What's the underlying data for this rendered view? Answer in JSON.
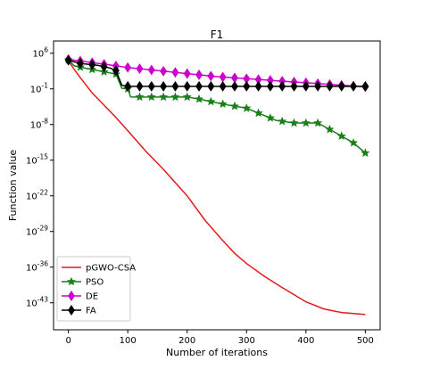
{
  "chart_data": {
    "type": "line",
    "title": "F1",
    "xlabel": "Number of iterations",
    "ylabel": "Function value",
    "xlim": [
      -25,
      525
    ],
    "ylog_exp_lim": [
      -48.3,
      8.4
    ],
    "yscale": "log",
    "xticks": [
      0,
      100,
      200,
      300,
      400,
      500
    ],
    "yticks": [
      {
        "exp": 6,
        "label": "10",
        "sup": "6"
      },
      {
        "exp": -1,
        "label": "10",
        "sup": "-1"
      },
      {
        "exp": -8,
        "label": "10",
        "sup": "-8"
      },
      {
        "exp": -15,
        "label": "10",
        "sup": "-15"
      },
      {
        "exp": -22,
        "label": "10",
        "sup": "-22"
      },
      {
        "exp": -29,
        "label": "10",
        "sup": "-29"
      },
      {
        "exp": -36,
        "label": "10",
        "sup": "-36"
      },
      {
        "exp": -43,
        "label": "10",
        "sup": "-43"
      }
    ],
    "legend_position": "lower-left",
    "series": [
      {
        "name": "pGWO-CSA",
        "color": "#e41a1c",
        "marker": "none",
        "x": [
          0,
          10,
          20,
          40,
          60,
          80,
          100,
          130,
          160,
          200,
          230,
          260,
          280,
          300,
          330,
          360,
          400,
          430,
          460,
          500
        ],
        "y_exp": [
          4.5,
          2.8,
          1.2,
          -1.8,
          -4.2,
          -6.6,
          -9.2,
          -13.2,
          -16.8,
          -22.0,
          -26.8,
          -30.8,
          -33.3,
          -35.3,
          -37.8,
          -40.0,
          -42.8,
          -44.2,
          -44.9,
          -45.3
        ]
      },
      {
        "name": "PSO",
        "color": "#1a7f1a",
        "marker": "star",
        "x": [
          0,
          10,
          40,
          80,
          90,
          100,
          105,
          115,
          160,
          200,
          220,
          240,
          270,
          300,
          350,
          380,
          420,
          450,
          480,
          500
        ],
        "y_exp": [
          4.7,
          3.5,
          2.8,
          1.9,
          -0.9,
          -1.0,
          -2.6,
          -2.6,
          -2.6,
          -2.6,
          -3.0,
          -3.5,
          -4.2,
          -4.8,
          -7.2,
          -7.7,
          -7.7,
          -9.6,
          -11.6,
          -13.6
        ]
      },
      {
        "name": "DE",
        "color": "#cc00cc",
        "marker": "diamond",
        "x": [
          0,
          25,
          50,
          75,
          100,
          125,
          150,
          175,
          200,
          225,
          250,
          275,
          300,
          325,
          350,
          375,
          400,
          425,
          450,
          475,
          500
        ],
        "y_exp": [
          4.8,
          4.4,
          4.0,
          3.6,
          3.2,
          2.9,
          2.6,
          2.3,
          2.0,
          1.7,
          1.4,
          1.2,
          1.0,
          0.8,
          0.6,
          0.4,
          0.2,
          0.0,
          -0.2,
          -0.4,
          -0.6
        ]
      },
      {
        "name": "FA",
        "color": "#000000",
        "marker": "diamond",
        "x": [
          0,
          20,
          50,
          70,
          80,
          90,
          100,
          130,
          160,
          190,
          220,
          250,
          280,
          310,
          340,
          370,
          400,
          430,
          460,
          500
        ],
        "y_exp": [
          4.6,
          4.0,
          3.6,
          3.1,
          2.6,
          -0.3,
          -0.5,
          -0.5,
          -0.5,
          -0.5,
          -0.5,
          -0.5,
          -0.5,
          -0.5,
          -0.5,
          -0.5,
          -0.5,
          -0.5,
          -0.5,
          -0.5
        ]
      }
    ]
  }
}
